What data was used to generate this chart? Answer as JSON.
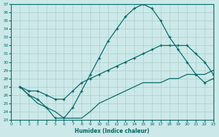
{
  "xlabel": "Humidex (Indice chaleur)",
  "bg_color": "#cce8e8",
  "line_color": "#006666",
  "grid_color": "#aacccc",
  "xlim": [
    0,
    23
  ],
  "ylim": [
    23,
    37
  ],
  "line1_x": [
    1,
    2,
    3,
    4,
    5,
    6,
    7,
    8,
    9,
    10,
    11,
    12,
    13,
    14,
    15,
    16,
    17,
    18,
    19,
    20,
    21,
    22,
    23
  ],
  "line1_y": [
    27.0,
    26.0,
    25.5,
    24.5,
    23.2,
    23.2,
    24.5,
    26.5,
    28.5,
    30.5,
    32.5,
    34.0,
    35.5,
    36.5,
    37.0,
    36.5,
    35.0,
    33.0,
    31.5,
    30.0,
    28.5,
    27.5,
    28.0
  ],
  "line2_x": [
    1,
    2,
    3,
    4,
    5,
    6,
    7,
    8,
    9,
    10,
    11,
    12,
    13,
    14,
    15,
    16,
    17,
    18,
    19,
    20,
    21,
    22,
    23
  ],
  "line2_y": [
    27.0,
    26.5,
    26.5,
    26.0,
    25.5,
    25.5,
    26.5,
    27.5,
    28.0,
    28.5,
    29.0,
    29.5,
    30.0,
    30.5,
    31.0,
    31.5,
    32.0,
    32.0,
    32.0,
    32.0,
    31.0,
    30.0,
    28.5
  ],
  "line3_x": [
    1,
    2,
    3,
    4,
    5,
    6,
    7,
    8,
    9,
    10,
    11,
    12,
    13,
    14,
    15,
    16,
    17,
    18,
    19,
    20,
    21,
    22,
    23
  ],
  "line3_y": [
    27.0,
    26.0,
    25.0,
    24.5,
    24.0,
    23.2,
    23.2,
    23.2,
    24.0,
    25.0,
    25.5,
    26.0,
    26.5,
    27.0,
    27.5,
    27.5,
    27.5,
    28.0,
    28.0,
    28.5,
    28.5,
    28.5,
    29.0
  ],
  "xticks": [
    0,
    1,
    2,
    3,
    4,
    5,
    6,
    7,
    8,
    9,
    10,
    11,
    12,
    13,
    14,
    15,
    16,
    17,
    18,
    19,
    20,
    21,
    22,
    23
  ],
  "yticks": [
    23,
    24,
    25,
    26,
    27,
    28,
    29,
    30,
    31,
    32,
    33,
    34,
    35,
    36,
    37
  ]
}
